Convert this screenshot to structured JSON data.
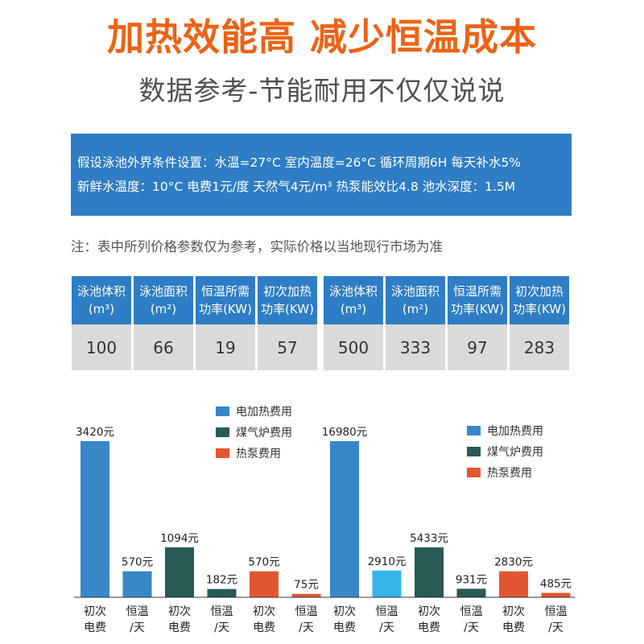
{
  "header": {
    "title": "加热效能高 减少恒温成本",
    "subtitle": "数据参考-节能耐用不仅仅说说"
  },
  "conditions": {
    "line1": "假设泳池外界条件设置：水温=27°C 室内温度=26°C 循环周期6H 每天补水5%",
    "line2": "新鲜水温度：10°C 电费1元/度 天然气4元/m³ 热泵能效比4.8 池水深度：1.5M"
  },
  "note": "注：表中所列价格参数仅为参考，实际价格以当地现行市场为准",
  "spec_table": {
    "headers": [
      {
        "line1": "泳池体积",
        "line2": "(m³)"
      },
      {
        "line1": "泳池面积",
        "line2": "(m²)"
      },
      {
        "line1": "恒温所需",
        "line2": "功率(KW)"
      },
      {
        "line1": "初次加热",
        "line2": "功率(KW)"
      }
    ],
    "rows": [
      [
        "100",
        "66",
        "19",
        "57"
      ],
      [
        "500",
        "333",
        "97",
        "283"
      ]
    ]
  },
  "colors": {
    "electric": "#3787c9",
    "gas": "#295a55",
    "heat_pump": "#e25631",
    "constant_highlight": "#35b5ea",
    "header_blue": "#2e7dc5",
    "title_orange": "#ec6316"
  },
  "chart_data": [
    {
      "type": "bar",
      "title": "",
      "pool_volume_m3": 100,
      "legend": [
        "电加热费用",
        "煤气炉费用",
        "热泵费用"
      ],
      "legend_position": "top-right",
      "groups": [
        {
          "label": "初次电费",
          "label_line1": "初次",
          "label_line2": "电费"
        },
        {
          "label": "恒温/天",
          "label_line1": "恒温",
          "label_line2": "/天"
        },
        {
          "label": "初次电费",
          "label_line1": "初次",
          "label_line2": "电费"
        },
        {
          "label": "恒温/天",
          "label_line1": "恒温",
          "label_line2": "/天"
        },
        {
          "label": "初次电费",
          "label_line1": "初次",
          "label_line2": "电费"
        },
        {
          "label": "恒温/天",
          "label_line1": "恒温",
          "label_line2": "/天"
        }
      ],
      "bars": [
        {
          "series": "电加热费用",
          "value": 3420,
          "label": "3420元",
          "color": "#3787c9"
        },
        {
          "series": "电加热费用",
          "value": 570,
          "label": "570元",
          "color": "#3787c9"
        },
        {
          "series": "煤气炉费用",
          "value": 1094,
          "label": "1094元",
          "color": "#295a55"
        },
        {
          "series": "煤气炉费用",
          "value": 182,
          "label": "182元",
          "color": "#295a55"
        },
        {
          "series": "热泵费用",
          "value": 570,
          "label": "570元",
          "color": "#e25631"
        },
        {
          "series": "热泵费用",
          "value": 75,
          "label": "75元",
          "color": "#e25631"
        }
      ],
      "unit": "元"
    },
    {
      "type": "bar",
      "title": "",
      "pool_volume_m3": 500,
      "legend": [
        "电加热费用",
        "煤气炉费用",
        "热泵费用"
      ],
      "legend_position": "top-right",
      "groups": [
        {
          "label": "初次电费",
          "label_line1": "初次",
          "label_line2": "电费"
        },
        {
          "label": "恒温/天",
          "label_line1": "恒温",
          "label_line2": "/天"
        },
        {
          "label": "初次电费",
          "label_line1": "初次",
          "label_line2": "电费"
        },
        {
          "label": "恒温/天",
          "label_line1": "恒温",
          "label_line2": "/天"
        },
        {
          "label": "初次电费",
          "label_line1": "初次",
          "label_line2": "电费"
        },
        {
          "label": "恒温/天",
          "label_line1": "恒温",
          "label_line2": "/天"
        }
      ],
      "bars": [
        {
          "series": "电加热费用",
          "value": 16980,
          "label": "16980元",
          "color": "#3787c9"
        },
        {
          "series": "电加热费用",
          "value": 2910,
          "label": "2910元",
          "color": "#35b5ea"
        },
        {
          "series": "煤气炉费用",
          "value": 5433,
          "label": "5433元",
          "color": "#295a55"
        },
        {
          "series": "煤气炉费用",
          "value": 931,
          "label": "931元",
          "color": "#295a55"
        },
        {
          "series": "热泵费用",
          "value": 2830,
          "label": "2830元",
          "color": "#e25631"
        },
        {
          "series": "热泵费用",
          "value": 485,
          "label": "485元",
          "color": "#e25631"
        }
      ],
      "unit": "元"
    }
  ]
}
